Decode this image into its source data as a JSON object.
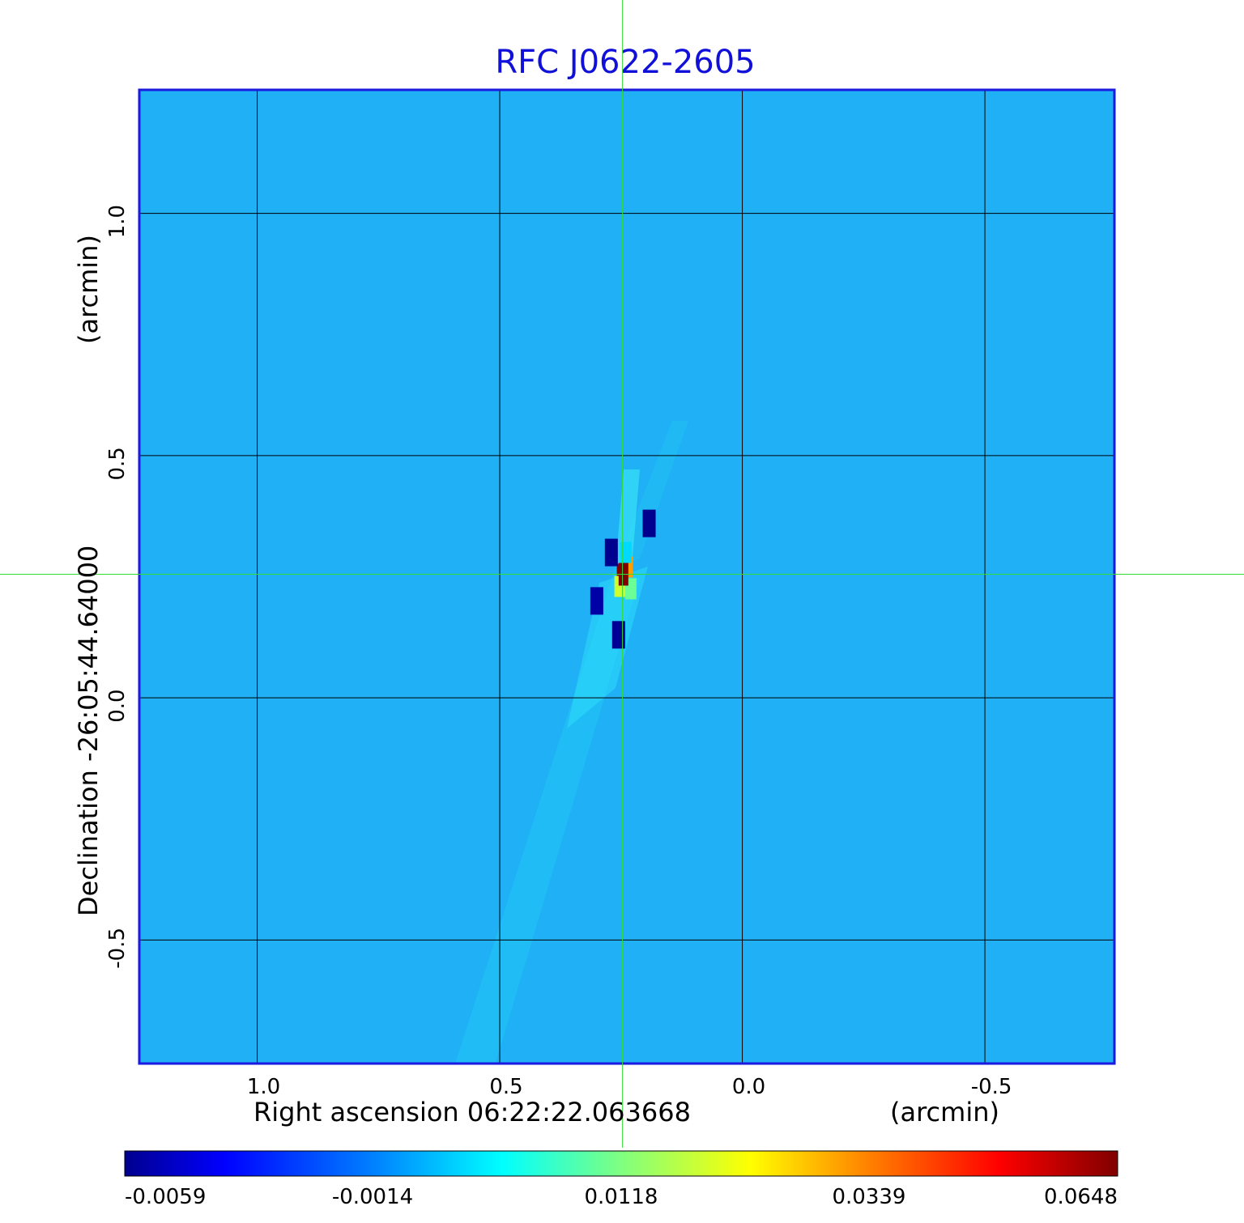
{
  "chart_data": {
    "type": "heatmap",
    "title": "RFC J0622-2605",
    "xlabel": "Right ascension  06:22:22.063668",
    "xunit": "(arcmin)",
    "ylabel": "Declination  -26:05:44.64000",
    "yunit": "(arcmin)",
    "x_ticks": [
      1.0,
      0.5,
      0.0,
      -0.5
    ],
    "x_tick_labels": [
      "1.0",
      "0.5",
      "0.0",
      "-0.5"
    ],
    "y_ticks": [
      1.0,
      0.5,
      0.0,
      -0.5
    ],
    "y_tick_labels": [
      "1.0",
      "0.5",
      "0.0",
      "-0.5"
    ],
    "xlim": [
      1.243,
      -0.767
    ],
    "ylim": [
      -0.755,
      1.255
    ],
    "grid": true,
    "crosshair": {
      "x": 0.247,
      "y": 0.255,
      "color": "#33dd33"
    },
    "background_value": -0.0005,
    "peak": {
      "x": 0.245,
      "y": 0.255,
      "value": 0.0648
    },
    "features": [
      {
        "x": 0.247,
        "y": 0.255,
        "value": 0.0648
      },
      {
        "x": 0.237,
        "y": 0.27,
        "value": 0.045
      },
      {
        "x": 0.252,
        "y": 0.23,
        "value": 0.035
      },
      {
        "x": 0.23,
        "y": 0.225,
        "value": 0.028
      },
      {
        "x": 0.24,
        "y": 0.3,
        "value": 0.018
      },
      {
        "x": 0.27,
        "y": 0.3,
        "value": -0.0059
      },
      {
        "x": 0.192,
        "y": 0.36,
        "value": -0.0059
      },
      {
        "x": 0.255,
        "y": 0.13,
        "value": -0.0055
      },
      {
        "x": 0.3,
        "y": 0.2,
        "value": -0.004
      }
    ],
    "colorbar": {
      "min": -0.0059,
      "max": 0.0648,
      "tick_labels": [
        "-0.0059",
        "-0.0014",
        "0.0118",
        "0.0339",
        "0.0648"
      ],
      "colormap": "jet",
      "colors": [
        "#00008f",
        "#0000ff",
        "#0080ff",
        "#00ffff",
        "#80ff80",
        "#ffff00",
        "#ff8000",
        "#ff0000",
        "#800000"
      ]
    },
    "frame_color": "#1a1ae0",
    "grid_color": "#000000"
  }
}
